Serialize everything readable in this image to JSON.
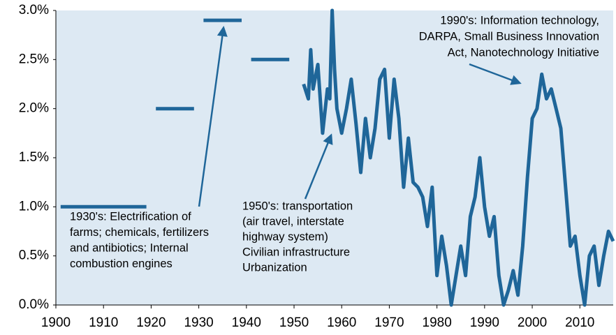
{
  "chart_data": {
    "type": "line",
    "xlim": [
      1900,
      2017
    ],
    "ylim": [
      0,
      3
    ],
    "xticks": [
      1900,
      1910,
      1920,
      1930,
      1940,
      1950,
      1960,
      1970,
      1980,
      1990,
      2000,
      2010
    ],
    "yticks": [
      {
        "value": 0,
        "label": "0.0%"
      },
      {
        "value": 0.5,
        "label": "0.5%"
      },
      {
        "value": 1,
        "label": "1.0%"
      },
      {
        "value": 1.5,
        "label": "1.5%"
      },
      {
        "value": 2,
        "label": "2.0%"
      },
      {
        "value": 2.5,
        "label": "2.5%"
      },
      {
        "value": 3,
        "label": "3.0%"
      }
    ],
    "background": "#dde9f3",
    "x": [
      1901,
      1919,
      1920,
      1921,
      1929,
      1930,
      1931,
      1939,
      1940,
      1941,
      1949,
      1950,
      1952,
      1953,
      1953.5,
      1954,
      1955,
      1956,
      1957,
      1957.5,
      1958,
      1958.5,
      1959,
      1960,
      1961,
      1962,
      1963,
      1964,
      1965,
      1966,
      1967,
      1968,
      1969,
      1970,
      1971,
      1972,
      1973,
      1974,
      1975,
      1976,
      1977,
      1978,
      1979,
      1980,
      1981,
      1982,
      1983,
      1984,
      1985,
      1986,
      1987,
      1988,
      1989,
      1990,
      1991,
      1992,
      1993,
      1994,
      1995,
      1996,
      1997,
      1998,
      1999,
      2000,
      2001,
      2002,
      2003,
      2004,
      2005,
      2006,
      2007,
      2008,
      2009,
      2010,
      2011,
      2012,
      2013,
      2014,
      2015,
      2016,
      2017
    ],
    "series": [
      {
        "color": "#1f6699",
        "values": [
          1.0,
          1.0,
          null,
          2.0,
          2.0,
          null,
          2.9,
          2.9,
          null,
          2.5,
          2.5,
          null,
          2.25,
          2.1,
          2.6,
          2.2,
          2.45,
          1.75,
          2.2,
          2.1,
          3.0,
          2.4,
          2.0,
          1.75,
          2.0,
          2.3,
          1.85,
          1.35,
          1.9,
          1.5,
          1.8,
          2.3,
          2.4,
          1.7,
          2.3,
          1.9,
          1.2,
          1.7,
          1.25,
          1.2,
          1.1,
          0.8,
          1.2,
          0.3,
          0.7,
          0.4,
          0.0,
          0.3,
          0.6,
          0.3,
          0.9,
          1.1,
          1.5,
          1.0,
          0.7,
          0.9,
          0.3,
          0.0,
          0.15,
          0.35,
          0.1,
          0.6,
          1.3,
          1.9,
          2.0,
          2.35,
          2.1,
          2.2,
          2.0,
          1.8,
          1.2,
          0.6,
          0.7,
          0.3,
          0.0,
          0.5,
          0.6,
          0.2,
          0.5,
          0.75,
          0.65
        ]
      }
    ],
    "annotations": [
      {
        "lines": [
          "1930's: Electrification of",
          "farms; chemicals, fertilizers",
          "and antibiotics; Internal",
          "combustion engines"
        ]
      },
      {
        "lines": [
          "1950's: transportation",
          "(air travel, interstate",
          "highway system)",
          "Civilian infrastructure",
          "Urbanization"
        ]
      },
      {
        "lines": [
          "1990's: Information technology,",
          "DARPA, Small Business Innovation",
          "Act, Nanotechnology Initiative"
        ]
      }
    ]
  }
}
